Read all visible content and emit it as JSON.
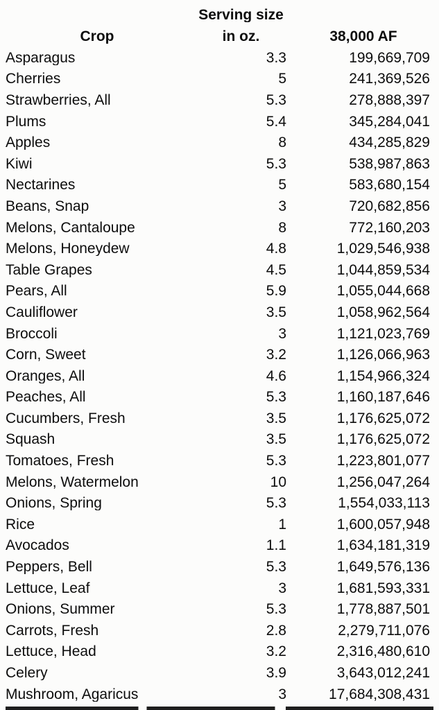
{
  "table": {
    "headers": {
      "crop": "Crop",
      "serving_line1": "Serving size",
      "serving_line2": "in oz.",
      "value": "38,000 AF"
    },
    "rows": [
      {
        "crop": "Asparagus",
        "serving": "3.3",
        "value": "199,669,709"
      },
      {
        "crop": "Cherries",
        "serving": "5",
        "value": "241,369,526"
      },
      {
        "crop": "Strawberries, All",
        "serving": "5.3",
        "value": "278,888,397"
      },
      {
        "crop": "Plums",
        "serving": "5.4",
        "value": "345,284,041"
      },
      {
        "crop": "Apples",
        "serving": "8",
        "value": "434,285,829"
      },
      {
        "crop": "Kiwi",
        "serving": "5.3",
        "value": "538,987,863"
      },
      {
        "crop": "Nectarines",
        "serving": "5",
        "value": "583,680,154"
      },
      {
        "crop": "Beans, Snap",
        "serving": "3",
        "value": "720,682,856"
      },
      {
        "crop": "Melons, Cantaloupe",
        "serving": "8",
        "value": "772,160,203"
      },
      {
        "crop": "Melons, Honeydew",
        "serving": "4.8",
        "value": "1,029,546,938"
      },
      {
        "crop": "Table Grapes",
        "serving": "4.5",
        "value": "1,044,859,534"
      },
      {
        "crop": "Pears, All",
        "serving": "5.9",
        "value": "1,055,044,668"
      },
      {
        "crop": "Cauliflower",
        "serving": "3.5",
        "value": "1,058,962,564"
      },
      {
        "crop": "Broccoli",
        "serving": "3",
        "value": "1,121,023,769"
      },
      {
        "crop": "Corn, Sweet",
        "serving": "3.2",
        "value": "1,126,066,963"
      },
      {
        "crop": "Oranges, All",
        "serving": "4.6",
        "value": "1,154,966,324"
      },
      {
        "crop": "Peaches, All",
        "serving": "5.3",
        "value": "1,160,187,646"
      },
      {
        "crop": "Cucumbers, Fresh",
        "serving": "3.5",
        "value": "1,176,625,072"
      },
      {
        "crop": "Squash",
        "serving": "3.5",
        "value": "1,176,625,072"
      },
      {
        "crop": "Tomatoes, Fresh",
        "serving": "5.3",
        "value": "1,223,801,077"
      },
      {
        "crop": "Melons, Watermelon",
        "serving": "10",
        "value": "1,256,047,264"
      },
      {
        "crop": "Onions, Spring",
        "serving": "5.3",
        "value": "1,554,033,113"
      },
      {
        "crop": "Rice",
        "serving": "1",
        "value": "1,600,057,948"
      },
      {
        "crop": "Avocados",
        "serving": "1.1",
        "value": "1,634,181,319"
      },
      {
        "crop": "Peppers, Bell",
        "serving": "5.3",
        "value": "1,649,576,136"
      },
      {
        "crop": "Lettuce, Leaf",
        "serving": "3",
        "value": "1,681,593,331"
      },
      {
        "crop": "Onions, Summer",
        "serving": "5.3",
        "value": "1,778,887,501"
      },
      {
        "crop": "Carrots, Fresh",
        "serving": "2.8",
        "value": "2,279,711,076"
      },
      {
        "crop": "Lettuce, Head",
        "serving": "3.2",
        "value": "2,316,480,610"
      },
      {
        "crop": "Celery",
        "serving": "3.9",
        "value": "3,643,012,241"
      },
      {
        "crop": "Mushroom, Agaricus",
        "serving": "3",
        "value": "17,684,308,431"
      }
    ]
  },
  "chart_data": {
    "type": "table",
    "title": "",
    "columns": [
      "Crop",
      "Serving size in oz.",
      "38,000 AF"
    ],
    "rows": [
      [
        "Asparagus",
        3.3,
        199669709
      ],
      [
        "Cherries",
        5,
        241369526
      ],
      [
        "Strawberries, All",
        5.3,
        278888397
      ],
      [
        "Plums",
        5.4,
        345284041
      ],
      [
        "Apples",
        8,
        434285829
      ],
      [
        "Kiwi",
        5.3,
        538987863
      ],
      [
        "Nectarines",
        5,
        583680154
      ],
      [
        "Beans, Snap",
        3,
        720682856
      ],
      [
        "Melons, Cantaloupe",
        8,
        772160203
      ],
      [
        "Melons, Honeydew",
        4.8,
        1029546938
      ],
      [
        "Table Grapes",
        4.5,
        1044859534
      ],
      [
        "Pears, All",
        5.9,
        1055044668
      ],
      [
        "Cauliflower",
        3.5,
        1058962564
      ],
      [
        "Broccoli",
        3,
        1121023769
      ],
      [
        "Corn, Sweet",
        3.2,
        1126066963
      ],
      [
        "Oranges, All",
        4.6,
        1154966324
      ],
      [
        "Peaches, All",
        5.3,
        1160187646
      ],
      [
        "Cucumbers, Fresh",
        3.5,
        1176625072
      ],
      [
        "Squash",
        3.5,
        1176625072
      ],
      [
        "Tomatoes, Fresh",
        5.3,
        1223801077
      ],
      [
        "Melons, Watermelon",
        10,
        1256047264
      ],
      [
        "Onions, Spring",
        5.3,
        1554033113
      ],
      [
        "Rice",
        1,
        1600057948
      ],
      [
        "Avocados",
        1.1,
        1634181319
      ],
      [
        "Peppers, Bell",
        5.3,
        1649576136
      ],
      [
        "Lettuce, Leaf",
        3,
        1681593331
      ],
      [
        "Onions, Summer",
        5.3,
        1778887501
      ],
      [
        "Carrots, Fresh",
        2.8,
        2279711076
      ],
      [
        "Lettuce, Head",
        3.2,
        2316480610
      ],
      [
        "Celery",
        3.9,
        3643012241
      ],
      [
        "Mushroom, Agaricus",
        3,
        17684308431
      ]
    ],
    "layout_hints": {
      "crop_column_align": "left",
      "numeric_columns_align": "right",
      "header_bold": true,
      "grid": "off"
    }
  },
  "colors": {
    "text": "#0d0d0d",
    "background": "#fcfcfb",
    "cutoff_bar": "#1e1e1e"
  }
}
